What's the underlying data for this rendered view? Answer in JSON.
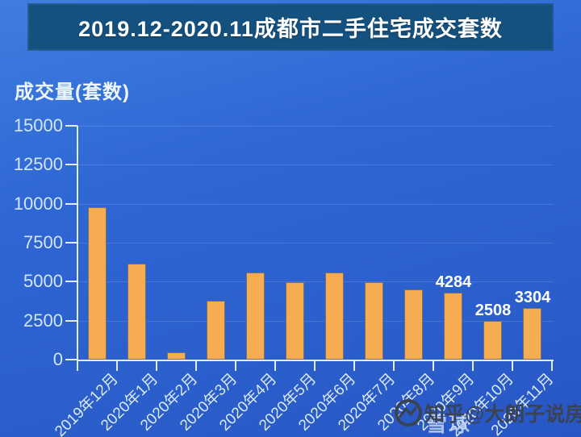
{
  "banner": {
    "title": "2019.12-2020.11成都市二手住宅成交套数",
    "bg_color": "#15517f",
    "text_color": "#ffffff"
  },
  "watermark": {
    "primary": "知乎@大朗子说房",
    "ghost": "雪球",
    "icon": "xueqiu-circle-icon",
    "primary_color": "#3a4355",
    "ghost_color": "#c6d5f0"
  },
  "colors": {
    "background_top": "#3f7edf",
    "background_bottom": "#2856c5",
    "bar_fill": "#f6ad52",
    "bar_border": "#60646c",
    "axis": "#e0edf9",
    "tick_label": "#d3e6f6",
    "gridline": "rgba(255,255,255,0.13)"
  },
  "chart_data": {
    "type": "bar",
    "title": "2019.12-2020.11成都市二手住宅成交套数",
    "xlabel": "",
    "ylabel": "成交量(套数)",
    "categories": [
      "2019年12月",
      "2020年1月",
      "2020年2月",
      "2020年3月",
      "2020年4月",
      "2020年5月",
      "2020年6月",
      "2020年7月",
      "2020年8月",
      "2020年9月",
      "2020年10月",
      "2020年11月"
    ],
    "values": [
      9800,
      6150,
      460,
      3750,
      5580,
      4950,
      5570,
      4940,
      4520,
      4284,
      2508,
      3304
    ],
    "data_labels": [
      null,
      null,
      null,
      null,
      null,
      null,
      null,
      null,
      null,
      "4284",
      "2508",
      "3304"
    ],
    "yticks": [
      0,
      2500,
      5000,
      7500,
      10000,
      12500,
      15000
    ],
    "ylim": [
      0,
      15000
    ],
    "grid": true,
    "legend": false,
    "bar_color": "#f6ad52"
  }
}
